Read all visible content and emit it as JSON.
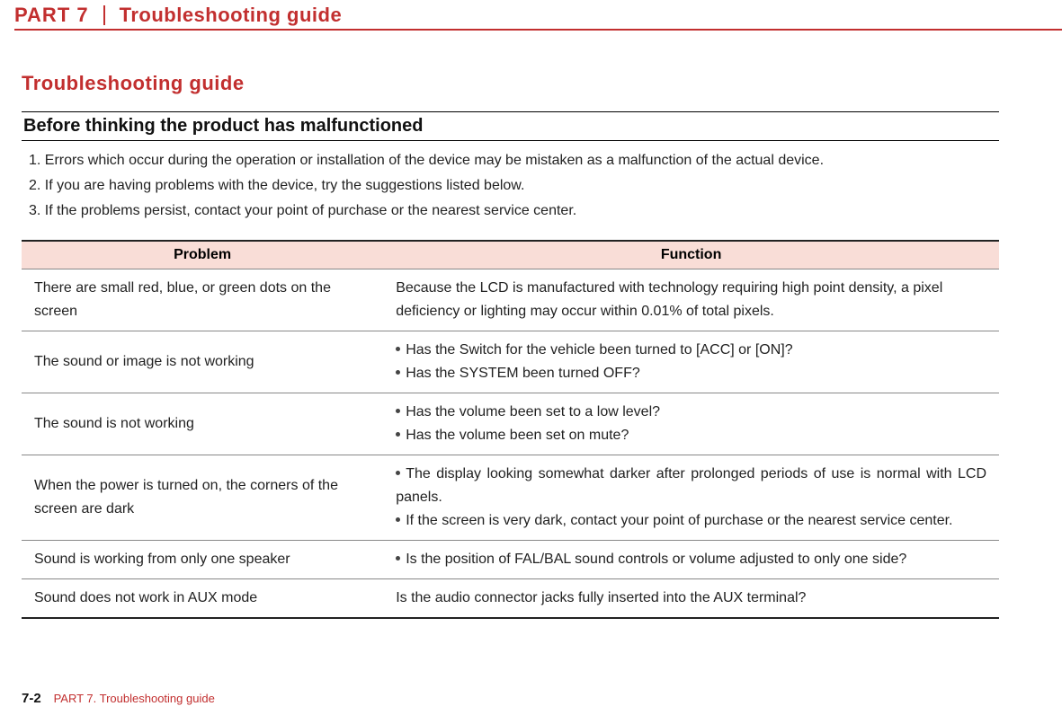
{
  "header": {
    "part_label": "PART 7",
    "title": "Troubleshooting guide",
    "accent_color": "#c22f2f"
  },
  "section": {
    "title": "Troubleshooting guide",
    "sub_header": "Before thinking the product has malfunctioned",
    "intro": [
      "1. Errors which occur during the operation or installation of the device may be mistaken as a malfunction of the actual device.",
      "2. If you are having problems with the device, try the suggestions listed below.",
      "3. If the problems persist, contact your point of purchase or the nearest service center."
    ]
  },
  "table": {
    "columns": {
      "problem": "Problem",
      "function": "Function"
    },
    "header_bg": "#f9ddd7",
    "rows": [
      {
        "problem": "There are small red, blue, or green dots on the screen",
        "function_plain": "Because the LCD is manufactured with technology requiring high point density, a pixel deficiency or lighting may occur within 0.01% of total pixels."
      },
      {
        "problem": "The sound or image is not working",
        "function_bullets": [
          "Has the Switch for the vehicle been turned to [ACC] or [ON]?",
          "Has the SYSTEM been turned OFF?"
        ]
      },
      {
        "problem": "The sound is not working",
        "function_bullets": [
          "Has the volume been set to a low level?",
          "Has the volume been set on mute?"
        ]
      },
      {
        "problem": "When the power is turned on, the corners of the screen are dark",
        "function_bullets": [
          "The display looking somewhat darker after prolonged periods of use is normal with LCD panels.",
          "If the screen is very dark, contact your point of purchase or the nearest service center."
        ]
      },
      {
        "problem": "Sound is working from only one speaker",
        "function_bullets": [
          "Is the position of FAL/BAL sound controls or volume adjusted to only one side?"
        ]
      },
      {
        "problem": "Sound does not work in AUX mode",
        "function_plain": "Is the audio connector jacks fully inserted into the AUX terminal?"
      }
    ]
  },
  "footer": {
    "page_number": "7-2",
    "text": "PART 7. Troubleshooting guide"
  }
}
